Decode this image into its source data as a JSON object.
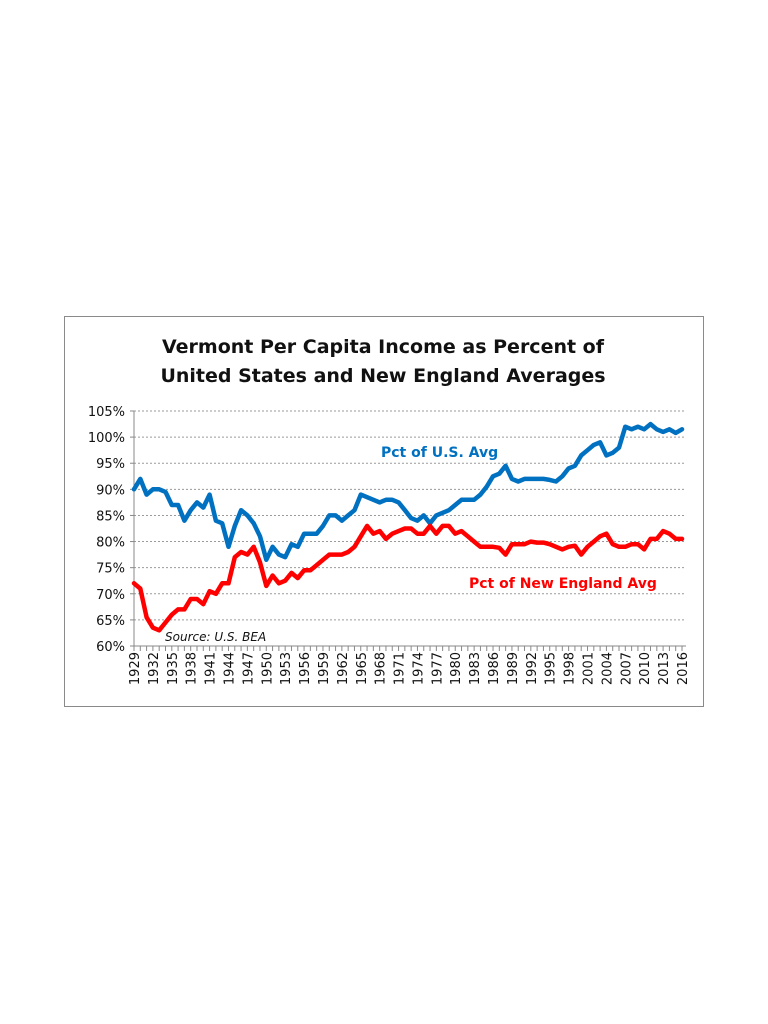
{
  "chart_data": {
    "type": "line",
    "title": [
      "Vermont Per Capita Income as Percent of",
      "United States and New England Averages"
    ],
    "xlabel": "",
    "ylabel": "",
    "ylim": [
      60,
      105
    ],
    "yticks": [
      "60%",
      "65%",
      "70%",
      "75%",
      "80%",
      "85%",
      "90%",
      "95%",
      "100%",
      "105%"
    ],
    "x_start": 1929,
    "x_end": 2016,
    "xtick_labels": [
      "1929",
      "1932",
      "1935",
      "1938",
      "1941",
      "1944",
      "1947",
      "1950",
      "1953",
      "1956",
      "1959",
      "1962",
      "1965",
      "1968",
      "1971",
      "1974",
      "1977",
      "1980",
      "1983",
      "1986",
      "1989",
      "1992",
      "1995",
      "1998",
      "2001",
      "2004",
      "2007",
      "2010",
      "2013",
      "2016"
    ],
    "grid": true,
    "annotation": "Source:  U.S. BEA",
    "series": [
      {
        "name": "Pct of U.S. Avg",
        "color": "#0070C0",
        "values": [
          90,
          92,
          89,
          90,
          90,
          89.5,
          87,
          87,
          84,
          86,
          87.5,
          86.5,
          89,
          84,
          83.5,
          79,
          83,
          86,
          85,
          83.5,
          81,
          76.5,
          79,
          77.5,
          77,
          79.5,
          79,
          81.5,
          81.5,
          81.5,
          83,
          85,
          85,
          84,
          85,
          86,
          89,
          88.5,
          88,
          87.5,
          88,
          88,
          87.5,
          86,
          84.5,
          84,
          85,
          83.5,
          85,
          85.5,
          86,
          87,
          88,
          88,
          88,
          89,
          90.5,
          92.5,
          93,
          94.5,
          92,
          91.5,
          92,
          92,
          92,
          92,
          91.8,
          91.5,
          92.5,
          94,
          94.5,
          96.5,
          97.5,
          98.5,
          99,
          96.5,
          97,
          98,
          102,
          101.5,
          102,
          101.5,
          102.5,
          101.5,
          101,
          101.5,
          100.8,
          101.5
        ]
      },
      {
        "name": "Pct of New England Avg",
        "color": "#FF0000",
        "values": [
          72,
          71,
          65.5,
          63.5,
          63,
          64.5,
          66,
          67,
          67,
          69,
          69,
          68,
          70.5,
          70,
          72,
          72,
          77,
          78,
          77.5,
          79,
          76,
          71.5,
          73.5,
          72,
          72.5,
          74,
          73,
          74.5,
          74.5,
          75.5,
          76.5,
          77.5,
          77.5,
          77.5,
          78,
          79,
          81,
          83,
          81.5,
          82,
          80.5,
          81.5,
          82,
          82.5,
          82.5,
          81.5,
          81.5,
          83,
          81.5,
          83,
          83,
          81.5,
          82,
          81,
          80,
          79,
          79,
          79,
          78.8,
          77.5,
          79.5,
          79.5,
          79.5,
          80,
          79.8,
          79.8,
          79.5,
          79,
          78.5,
          79,
          79.2,
          77.5,
          79,
          80,
          81,
          81.5,
          79.5,
          79,
          79,
          79.5,
          79.5,
          78.5,
          80.5,
          80.5,
          82,
          81.5,
          80.5,
          80.5
        ]
      }
    ]
  }
}
